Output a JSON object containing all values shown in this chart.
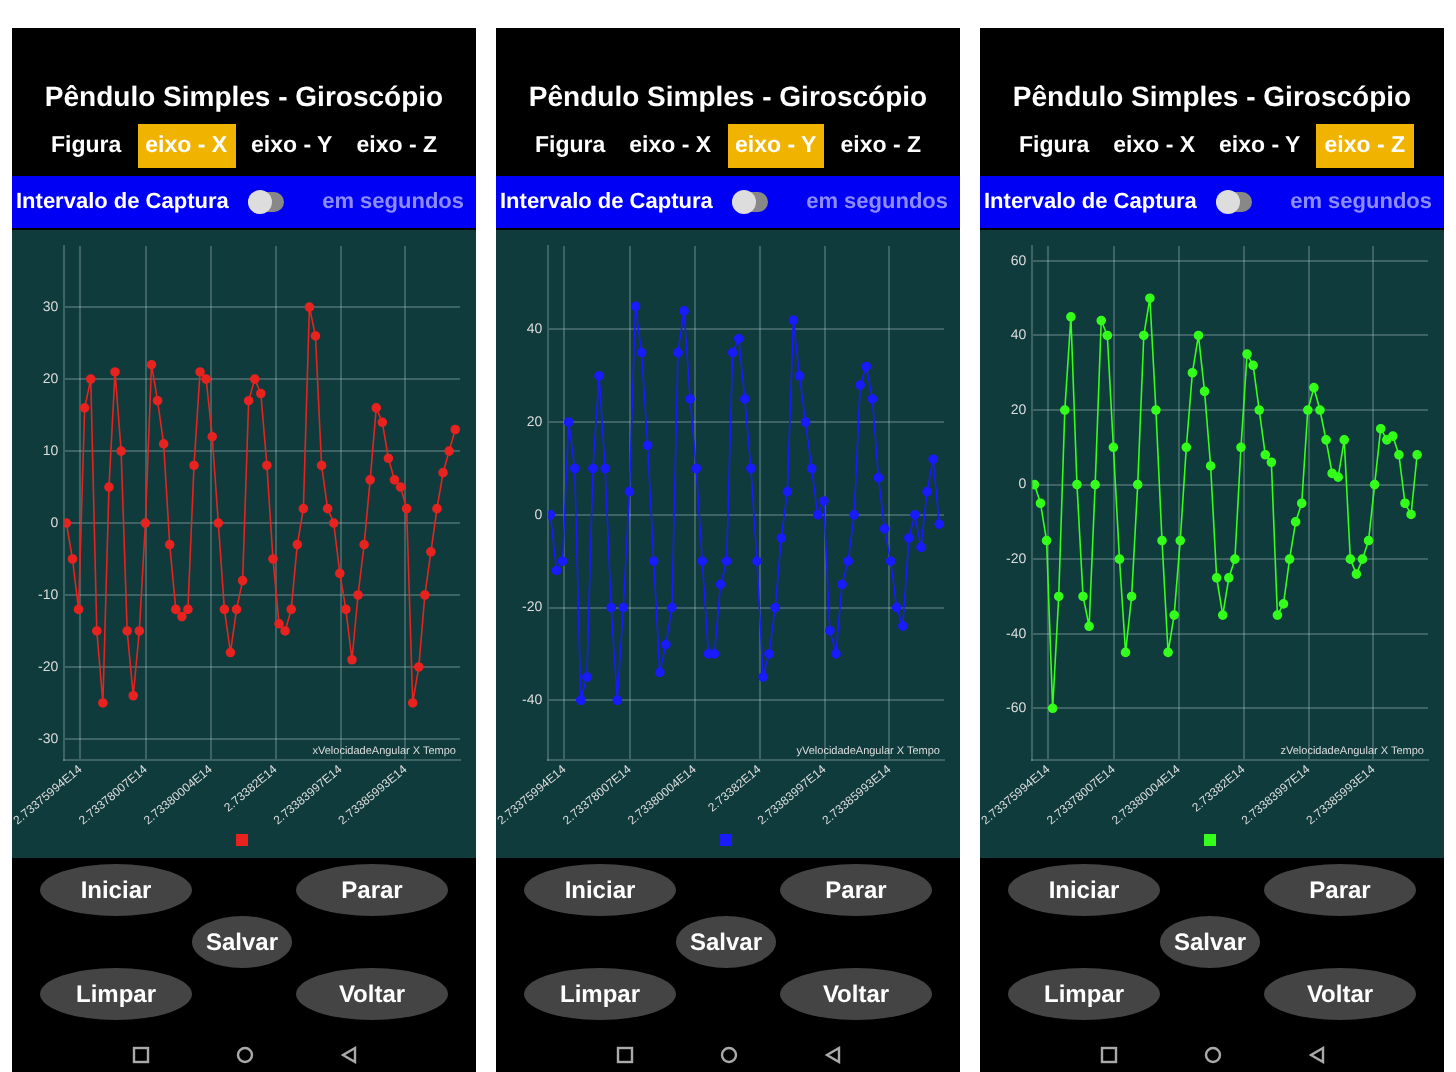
{
  "chart_data": [
    {
      "type": "line",
      "title": "Pêndulo Simples - Giroscópio",
      "annotations": [
        "Figura",
        "eixo - X",
        "eixo - Y",
        "eixo - Z",
        "Intervalo de Captura",
        "em segundos",
        "Iniciar",
        "Parar",
        "Salvar",
        "Limpar",
        "Voltar",
        "xVelocidadeAngular X Tempo"
      ],
      "x": [
        273375564000000.0,
        273375751000000.0,
        273375938000000.0,
        273376125000000.0,
        273376312000000.0,
        273376499000000.0,
        273376686000000.0,
        273376873000000.0,
        273377060000000.0,
        273377247000000.0,
        273377433000000.0,
        273377620000000.0,
        273377807000000.0,
        273377994000000.0,
        273378181000000.0,
        273378368000000.0,
        273378555000000.0,
        273378742000000.0,
        273378929000000.0,
        273379116000000.0,
        273379302000000.0,
        273379489000000.0,
        273379676000000.0,
        273379863000000.0,
        273380050000000.0,
        273380237000000.0,
        273380424000000.0,
        273380611000000.0,
        273380798000000.0,
        273380985000000.0,
        273381171000000.0,
        273381358000000.0,
        273381545000000.0,
        273381732000000.0,
        273381919000000.0,
        273382106000000.0,
        273382293000000.0,
        273382480000000.0,
        273382667000000.0,
        273382854000000.0,
        273383040000000.0,
        273383227000000.0,
        273383414000000.0,
        273383601000000.0,
        273383788000000.0,
        273383975000000.0,
        273384162000000.0,
        273384349000000.0,
        273384536000000.0,
        273384723000000.0,
        273384909000000.0,
        273385096000000.0,
        273385283000000.0,
        273385470000000.0,
        273385657000000.0,
        273385844000000.0,
        273386031000000.0,
        273386218000000.0,
        273386405000000.0,
        273386592000000.0,
        273386778000000.0,
        273386965000000.0,
        273387152000000.0,
        273387339000000.0,
        273387526000000.0
      ],
      "series": [
        {
          "color": "#e8231f",
          "values": [
            0,
            -5,
            -12,
            16,
            20,
            -15,
            -25,
            5,
            21,
            10,
            -15,
            -24,
            -15,
            0,
            22,
            17,
            11,
            -3,
            -12,
            -13,
            -12,
            8,
            21,
            20,
            12,
            0,
            -12,
            -18,
            -12,
            -8,
            17,
            20,
            18,
            8,
            -5,
            -14,
            -15,
            -12,
            -3,
            2,
            30,
            26,
            8,
            2,
            0,
            -7,
            -12,
            -19,
            -10,
            -3,
            6,
            16,
            14,
            9,
            6,
            5,
            2,
            -25,
            -20,
            -10,
            -4,
            2,
            7,
            10,
            13
          ]
        }
      ],
      "xlim": [
        273375500000000.0,
        273387673000000.0
      ],
      "xticks": [
        {
          "value": 273375994000000.0,
          "label": "2.73375994E14"
        },
        {
          "value": 273378007000000.0,
          "label": "2.73378007E14"
        },
        {
          "value": 273380004000000.0,
          "label": "2.73380004E14"
        },
        {
          "value": 273382000000000.0,
          "label": "2.73382E14"
        },
        {
          "value": 273383997000000.0,
          "label": "2.73383997E14"
        },
        {
          "value": 273385993000000.0,
          "label": "2.73385993E14"
        }
      ],
      "ylim": [
        -33,
        38.5
      ],
      "yticks": [
        -30,
        -20,
        -10,
        0,
        10,
        20,
        30
      ],
      "grid": true,
      "marker": "circle"
    },
    {
      "type": "line",
      "title": "Pêndulo Simples - Giroscópio",
      "annotations": [
        "Figura",
        "eixo - X",
        "eixo - Y",
        "eixo - Z",
        "Intervalo de Captura",
        "em segundos",
        "Iniciar",
        "Parar",
        "Salvar",
        "Limpar",
        "Voltar",
        "yVelocidadeAngular X Tempo"
      ],
      "x": [
        273375564000000.0,
        273375751000000.0,
        273375938000000.0,
        273376125000000.0,
        273376312000000.0,
        273376499000000.0,
        273376686000000.0,
        273376873000000.0,
        273377060000000.0,
        273377247000000.0,
        273377433000000.0,
        273377620000000.0,
        273377807000000.0,
        273377994000000.0,
        273378181000000.0,
        273378368000000.0,
        273378555000000.0,
        273378742000000.0,
        273378929000000.0,
        273379116000000.0,
        273379302000000.0,
        273379489000000.0,
        273379676000000.0,
        273379863000000.0,
        273380050000000.0,
        273380237000000.0,
        273380424000000.0,
        273380611000000.0,
        273380798000000.0,
        273380985000000.0,
        273381171000000.0,
        273381358000000.0,
        273381545000000.0,
        273381732000000.0,
        273381919000000.0,
        273382106000000.0,
        273382293000000.0,
        273382480000000.0,
        273382667000000.0,
        273382854000000.0,
        273383040000000.0,
        273383227000000.0,
        273383414000000.0,
        273383601000000.0,
        273383788000000.0,
        273383975000000.0,
        273384162000000.0,
        273384349000000.0,
        273384536000000.0,
        273384723000000.0,
        273384909000000.0,
        273385096000000.0,
        273385283000000.0,
        273385470000000.0,
        273385657000000.0,
        273385844000000.0,
        273386031000000.0,
        273386218000000.0,
        273386405000000.0,
        273386592000000.0,
        273386778000000.0,
        273386965000000.0,
        273387152000000.0,
        273387339000000.0,
        273387526000000.0
      ],
      "series": [
        {
          "color": "#1a1aff",
          "values": [
            0,
            -12,
            -10,
            20,
            10,
            -40,
            -35,
            10,
            30,
            10,
            -20,
            -40,
            -20,
            5,
            45,
            35,
            15,
            -10,
            -34,
            -28,
            -20,
            35,
            44,
            25,
            10,
            -10,
            -30,
            -30,
            -15,
            -10,
            35,
            38,
            25,
            10,
            -10,
            -35,
            -30,
            -20,
            -5,
            5,
            42,
            30,
            20,
            10,
            0,
            3,
            -25,
            -30,
            -15,
            -10,
            0,
            28,
            32,
            25,
            8,
            -3,
            -10,
            -20,
            -24,
            -5,
            0,
            -7,
            5,
            12,
            -2
          ]
        }
      ],
      "xlim": [
        273375500000000.0,
        273387673000000.0
      ],
      "xticks": [
        {
          "value": 273375994000000.0,
          "label": "2.73375994E14"
        },
        {
          "value": 273378007000000.0,
          "label": "2.73378007E14"
        },
        {
          "value": 273380004000000.0,
          "label": "2.73380004E14"
        },
        {
          "value": 273382000000000.0,
          "label": "2.73382E14"
        },
        {
          "value": 273383997000000.0,
          "label": "2.73383997E14"
        },
        {
          "value": 273385993000000.0,
          "label": "2.73385993E14"
        }
      ],
      "ylim": [
        -53,
        58
      ],
      "yticks": [
        -40,
        -20,
        0,
        20,
        40
      ],
      "grid": true,
      "marker": "circle"
    },
    {
      "type": "line",
      "title": "Pêndulo Simples - Giroscópio",
      "annotations": [
        "Figura",
        "eixo - X",
        "eixo - Y",
        "eixo - Z",
        "Intervalo de Captura",
        "em segundos",
        "Iniciar",
        "Parar",
        "Salvar",
        "Limpar",
        "Voltar",
        "zVelocidadeAngular X Tempo"
      ],
      "x": [
        273375564000000.0,
        273375751000000.0,
        273375938000000.0,
        273376125000000.0,
        273376312000000.0,
        273376499000000.0,
        273376686000000.0,
        273376873000000.0,
        273377060000000.0,
        273377247000000.0,
        273377433000000.0,
        273377620000000.0,
        273377807000000.0,
        273377994000000.0,
        273378181000000.0,
        273378368000000.0,
        273378555000000.0,
        273378742000000.0,
        273378929000000.0,
        273379116000000.0,
        273379302000000.0,
        273379489000000.0,
        273379676000000.0,
        273379863000000.0,
        273380050000000.0,
        273380237000000.0,
        273380424000000.0,
        273380611000000.0,
        273380798000000.0,
        273380985000000.0,
        273381171000000.0,
        273381358000000.0,
        273381545000000.0,
        273381732000000.0,
        273381919000000.0,
        273382106000000.0,
        273382293000000.0,
        273382480000000.0,
        273382667000000.0,
        273382854000000.0,
        273383040000000.0,
        273383227000000.0,
        273383414000000.0,
        273383601000000.0,
        273383788000000.0,
        273383975000000.0,
        273384162000000.0,
        273384349000000.0,
        273384536000000.0,
        273384723000000.0,
        273384909000000.0,
        273385096000000.0,
        273385283000000.0,
        273385470000000.0,
        273385657000000.0,
        273385844000000.0,
        273386031000000.0,
        273386218000000.0,
        273386405000000.0,
        273386592000000.0,
        273386778000000.0,
        273386965000000.0,
        273387152000000.0,
        273387339000000.0
      ],
      "series": [
        {
          "color": "#33ff1a",
          "values": [
            0,
            -5,
            -15,
            -60,
            -30,
            20,
            45,
            0,
            -30,
            -38,
            0,
            44,
            40,
            10,
            -20,
            -45,
            -30,
            0,
            40,
            50,
            20,
            -15,
            -45,
            -35,
            -15,
            10,
            30,
            40,
            25,
            5,
            -25,
            -35,
            -25,
            -20,
            10,
            35,
            32,
            20,
            8,
            6,
            -35,
            -32,
            -20,
            -10,
            -5,
            20,
            26,
            20,
            12,
            3,
            2,
            12,
            -20,
            -24,
            -20,
            -15,
            0,
            15,
            12,
            13,
            8,
            -5,
            -8,
            8
          ]
        }
      ],
      "xlim": [
        273375500000000.0,
        273387673000000.0
      ],
      "xticks": [
        {
          "value": 273375994000000.0,
          "label": "2.73375994E14"
        },
        {
          "value": 273378007000000.0,
          "label": "2.73378007E14"
        },
        {
          "value": 273380004000000.0,
          "label": "2.73380004E14"
        },
        {
          "value": 273382000000000.0,
          "label": "2.73382E14"
        },
        {
          "value": 273383997000000.0,
          "label": "2.73383997E14"
        },
        {
          "value": 273385993000000.0,
          "label": "2.73385993E14"
        }
      ],
      "ylim": [
        -74,
        64
      ],
      "yticks": [
        -60,
        -40,
        -20,
        0,
        20,
        40,
        60
      ],
      "grid": true,
      "marker": "circle"
    }
  ]
}
